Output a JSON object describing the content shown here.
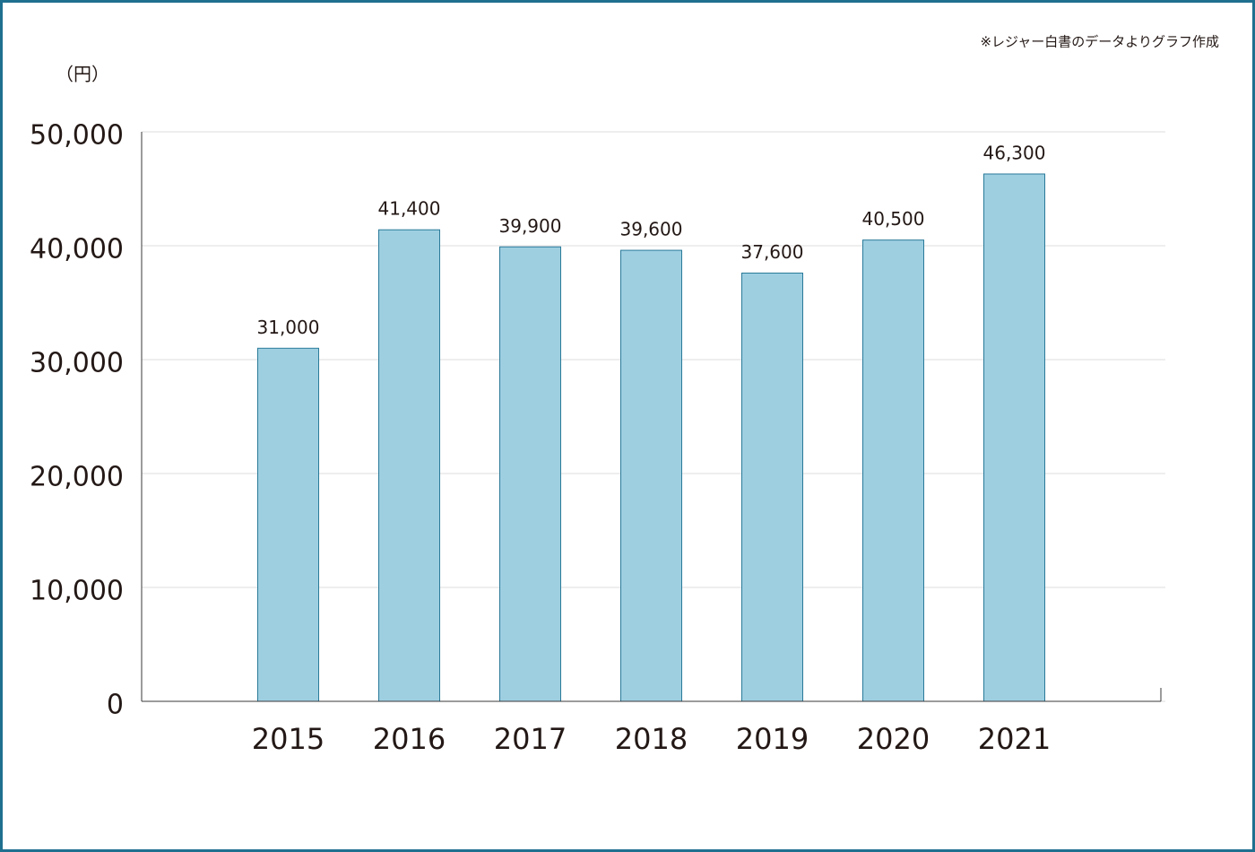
{
  "chart_data": {
    "type": "bar",
    "note": "※レジャー白書のデータよりグラフ作成",
    "y_label": "（円）",
    "categories": [
      "2015",
      "2016",
      "2017",
      "2018",
      "2019",
      "2020",
      "2021"
    ],
    "values": [
      31000,
      41400,
      39900,
      39600,
      37600,
      40500,
      46300
    ],
    "value_labels": [
      "31,000",
      "41,400",
      "39,900",
      "39,600",
      "37,600",
      "40,500",
      "46,300"
    ],
    "color": "#9ecfe1",
    "ylim": [
      0,
      50000
    ],
    "yticks": [
      0,
      {
        "value": 10000,
        "label": "10,000"
      },
      {
        "value": 20000,
        "label": "20,000"
      },
      {
        "value": 30000,
        "label": "30,000"
      },
      {
        "value": 40000,
        "label": "40,000"
      },
      {
        "value": 50000,
        "label": "50,000"
      }
    ],
    "grid": true
  }
}
